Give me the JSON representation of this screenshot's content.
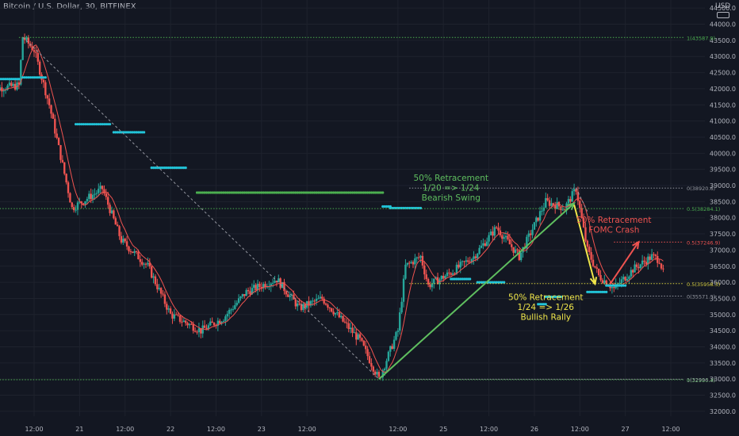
{
  "header": {
    "symbol": "Bitcoin / U.S. Dollar, 30, BITFINEX",
    "currency": "USD"
  },
  "colors": {
    "background": "#131722",
    "grid": "#1e222d",
    "axis_text": "#b2b5be",
    "bull": "#26a69a",
    "bear": "#ef5350",
    "ma_line": "#ef5350",
    "dots_cyan": "#22c4d8",
    "dots_green": "#4caf50",
    "green_annotation": "#5fbf5f",
    "yellow_annotation": "#f0e64a",
    "red_annotation": "#ef5350",
    "fib_green": "#4caf50",
    "fib_yellow": "#d7cf3f",
    "fib_red": "#ef5350",
    "fib_gray": "#9598a1"
  },
  "chart_data": {
    "type": "candlestick",
    "y_axis": {
      "ticks": [
        32000,
        32500,
        33000,
        33500,
        34000,
        34500,
        35000,
        35500,
        36000,
        36500,
        37000,
        37500,
        38000,
        38500,
        39000,
        39500,
        40000,
        40500,
        41000,
        41500,
        42000,
        42500,
        43000,
        43500,
        44000,
        44500
      ],
      "tick_labels": [
        "32000.0",
        "32500.0",
        "33000.0",
        "33500.0",
        "34000.0",
        "34500.0",
        "35000.0",
        "35500.0",
        "36000.0",
        "36500.0",
        "37000.0",
        "37500.0",
        "38000.0",
        "38500.0",
        "39000.0",
        "39500.0",
        "40000.0",
        "40500.0",
        "41000.0",
        "41500.0",
        "42000.0",
        "42500.0",
        "43000.0",
        "43500.0",
        "44000.0",
        "44500.0"
      ],
      "range": [
        31850,
        44750
      ]
    },
    "x_axis": {
      "tick_labels": [
        "12:00",
        "21",
        "12:00",
        "22",
        "12:00",
        "23",
        "12:00",
        "12:00",
        "25",
        "12:00",
        "26",
        "12:00",
        "27",
        "12:00"
      ],
      "tick_positions_hours": [
        12,
        24,
        36,
        48,
        60,
        72,
        84,
        108,
        120,
        132,
        144,
        156,
        168,
        180
      ],
      "unit": "hours since 20 00:00",
      "range": [
        3,
        189
      ]
    },
    "price_path": [
      [
        0,
        41980
      ],
      [
        8,
        42100
      ],
      [
        9,
        43600
      ],
      [
        12,
        43200
      ],
      [
        16,
        41500
      ],
      [
        22,
        38300
      ],
      [
        30,
        38900
      ],
      [
        35,
        37300
      ],
      [
        42,
        36500
      ],
      [
        48,
        35000
      ],
      [
        56,
        34500
      ],
      [
        62,
        34900
      ],
      [
        68,
        35700
      ],
      [
        76,
        36100
      ],
      [
        82,
        35200
      ],
      [
        88,
        35500
      ],
      [
        98,
        34200
      ],
      [
        103,
        33000
      ],
      [
        108,
        34500
      ],
      [
        110,
        36500
      ],
      [
        114,
        36800
      ],
      [
        116,
        35900
      ],
      [
        122,
        36300
      ],
      [
        128,
        36800
      ],
      [
        134,
        37700
      ],
      [
        140,
        36800
      ],
      [
        147,
        38500
      ],
      [
        152,
        38300
      ],
      [
        155,
        38900
      ],
      [
        158,
        37000
      ],
      [
        161,
        36200
      ],
      [
        165,
        35800
      ],
      [
        170,
        36400
      ],
      [
        175,
        36800
      ],
      [
        177,
        36700
      ],
      [
        178,
        36300
      ]
    ],
    "fib_levels": [
      {
        "label": "1(43587.9)",
        "value": 43587.9,
        "color": "fib_green",
        "x_start": 8
      },
      {
        "label": "0.5(38284.1)",
        "value": 38284.1,
        "color": "fib_green",
        "x_start": 0
      },
      {
        "label": "0(32980.4)",
        "value": 32980.4,
        "color": "fib_green",
        "x_start": 0
      },
      {
        "label": "0(38920.6)",
        "value": 38920.6,
        "color": "fib_gray",
        "x_start": 111
      },
      {
        "label": "0.5(35958.3)",
        "value": 35958.3,
        "color": "fib_yellow",
        "x_start": 111
      },
      {
        "label": "1(32996.1)",
        "value": 32996.1,
        "color": "fib_gray",
        "x_start": 111
      },
      {
        "label": "0.5(37246.9)",
        "value": 37246.9,
        "color": "fib_red",
        "x_start": 165
      },
      {
        "label": "0(35571.3)",
        "value": 35571.3,
        "color": "fib_gray",
        "x_start": 165
      }
    ],
    "dot_levels": [
      {
        "x_from": 0,
        "x_to": 8,
        "value": 42300,
        "color": "dots_cyan"
      },
      {
        "x_from": 9,
        "x_to": 15,
        "value": 42350,
        "color": "dots_cyan"
      },
      {
        "x_from": 23,
        "x_to": 32,
        "value": 40900,
        "color": "dots_cyan"
      },
      {
        "x_from": 33,
        "x_to": 41,
        "value": 40650,
        "color": "dots_cyan"
      },
      {
        "x_from": 43,
        "x_to": 52,
        "value": 39550,
        "color": "dots_cyan"
      },
      {
        "x_from": 55,
        "x_to": 104,
        "value": 38780,
        "color": "dots_green"
      },
      {
        "x_from": 104,
        "x_to": 106,
        "value": 38350,
        "color": "dots_cyan"
      },
      {
        "x_from": 106,
        "x_to": 114,
        "value": 38300,
        "color": "dots_cyan"
      },
      {
        "x_from": 122,
        "x_to": 127,
        "value": 36100,
        "color": "dots_cyan"
      },
      {
        "x_from": 129,
        "x_to": 136,
        "value": 36000,
        "color": "dots_cyan"
      },
      {
        "x_from": 145,
        "x_to": 147,
        "value": 35320,
        "color": "dots_cyan"
      },
      {
        "x_from": 147,
        "x_to": 151,
        "value": 35550,
        "color": "dots_cyan"
      },
      {
        "x_from": 158,
        "x_to": 163,
        "value": 35700,
        "color": "dots_cyan"
      },
      {
        "x_from": 163,
        "x_to": 168,
        "value": 35900,
        "color": "dots_cyan"
      }
    ],
    "trend_lines": [
      {
        "from": [
          9,
          43600
        ],
        "to": [
          103,
          33000
        ],
        "color": "fib_gray",
        "dashed": true
      },
      {
        "from": [
          155,
          38920
        ],
        "to": [
          158,
          38200
        ],
        "color": "fib_gray",
        "dashed": true
      }
    ],
    "arrows": [
      {
        "from": [
          103,
          33000
        ],
        "to": [
          154.5,
          38450
        ],
        "color": "green_annotation"
      },
      {
        "from": [
          154.5,
          38400
        ],
        "to": [
          160,
          35950
        ],
        "color": "yellow_annotation"
      },
      {
        "from": [
          164,
          35950
        ],
        "to": [
          171.5,
          37250
        ],
        "color": "red_annotation"
      }
    ],
    "annotations": [
      {
        "lines": [
          "50% Retracement",
          "1/20 => 1/24",
          "Bearish Swing"
        ],
        "x": 122,
        "y": 39150,
        "color": "green_annotation"
      },
      {
        "lines": [
          "50% Retracement",
          "1/24 => 1/26",
          "Bullish Rally"
        ],
        "x": 147,
        "y": 35450,
        "color": "yellow_annotation"
      },
      {
        "lines": [
          "50% Retracement",
          "FOMC Crash"
        ],
        "x": 165,
        "y": 37850,
        "color": "red_annotation"
      }
    ]
  }
}
